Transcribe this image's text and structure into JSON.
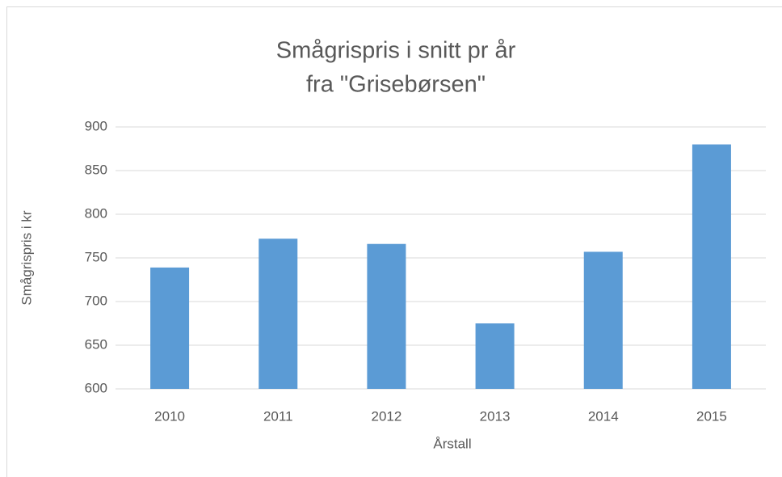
{
  "chart_data": {
    "type": "bar",
    "title": [
      "Smågrispris i snitt pr år",
      "fra \"Grisebørsen\""
    ],
    "x_label": "Årstall",
    "y_label": "Smågrispris i kr",
    "categories": [
      "2010",
      "2011",
      "2012",
      "2013",
      "2014",
      "2015"
    ],
    "values": [
      739,
      772,
      766,
      675,
      757,
      880
    ],
    "color": "#5b9bd5",
    "ylim": [
      600,
      900
    ],
    "yticks": [
      600,
      650,
      700,
      750,
      800,
      850,
      900
    ],
    "grid": true
  }
}
